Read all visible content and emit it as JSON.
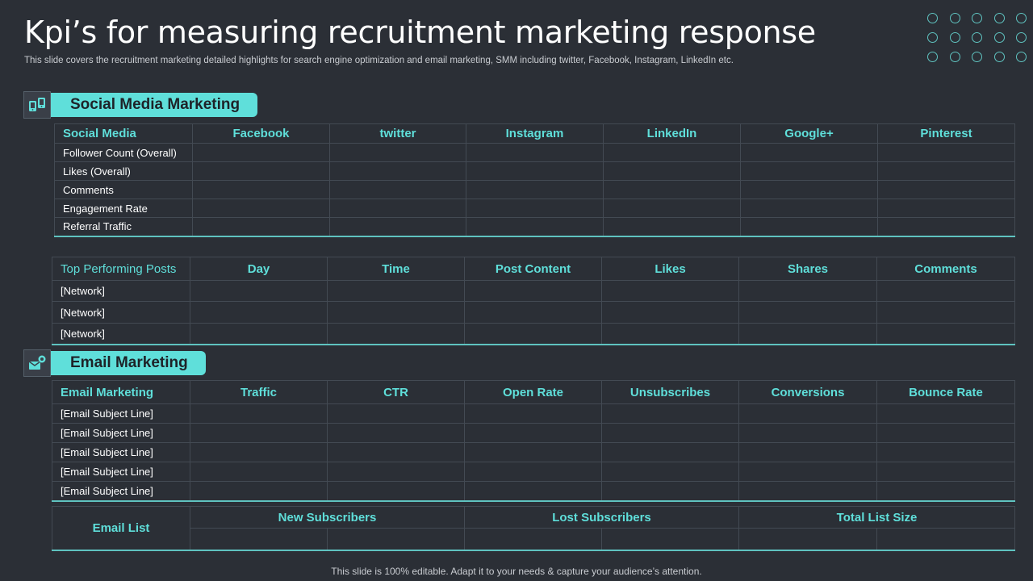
{
  "title": "Kpi’s for measuring recruitment marketing response",
  "subtitle": "This slide covers the recruitment marketing detailed highlights for search engine optimization and email marketing, SMM including twitter, Facebook, Instagram, LinkedIn etc.",
  "accent_color": "#5fdfda",
  "social": {
    "section_label": "Social Media Marketing",
    "icon": "social-media-icon",
    "headers": [
      "Social Media",
      "Facebook",
      "twitter",
      "Instagram",
      "LinkedIn",
      "Google+",
      "Pinterest"
    ],
    "rows": [
      "Follower Count (Overall)",
      "Likes (Overall)",
      "Comments",
      "Engagement  Rate",
      "Referral  Traffic"
    ]
  },
  "posts": {
    "headers": [
      "Top Performing Posts",
      "Day",
      "Time",
      "Post Content",
      "Likes",
      "Shares",
      "Comments"
    ],
    "rows": [
      "[Network]",
      "[Network]",
      "[Network]"
    ]
  },
  "email": {
    "section_label": "Email Marketing",
    "icon": "email-marketing-icon",
    "headers": [
      "Email Marketing",
      "Traffic",
      "CTR",
      "Open Rate",
      "Unsubscribes",
      "Conversions",
      "Bounce Rate"
    ],
    "rows": [
      "[Email Subject Line]",
      "[Email Subject Line]",
      "[Email Subject Line]",
      "[Email Subject Line]",
      "[Email Subject Line]"
    ]
  },
  "email_list": {
    "label": "Email List",
    "headers": [
      "New Subscribers",
      "Lost Subscribers",
      "Total List Size"
    ]
  },
  "footer": "This slide is 100% editable. Adapt it to your needs & capture your audience’s attention."
}
